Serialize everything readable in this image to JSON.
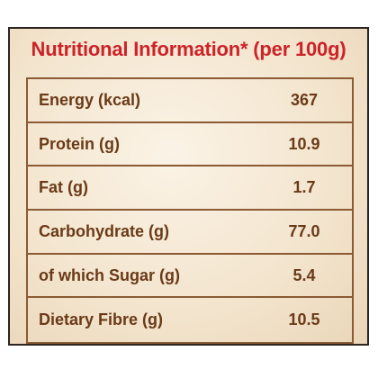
{
  "header": {
    "title": "Nutritional Information* (per 100g)"
  },
  "table": {
    "rows": [
      [
        "Energy (kcal)",
        "367"
      ],
      [
        "Protein (g)",
        "10.9"
      ],
      [
        "Fat (g)",
        "1.7"
      ],
      [
        "Carbohydrate (g)",
        "77.0"
      ],
      [
        "of which Sugar (g)",
        "5.4"
      ],
      [
        "Dietary Fibre (g)",
        "10.5"
      ]
    ]
  }
}
